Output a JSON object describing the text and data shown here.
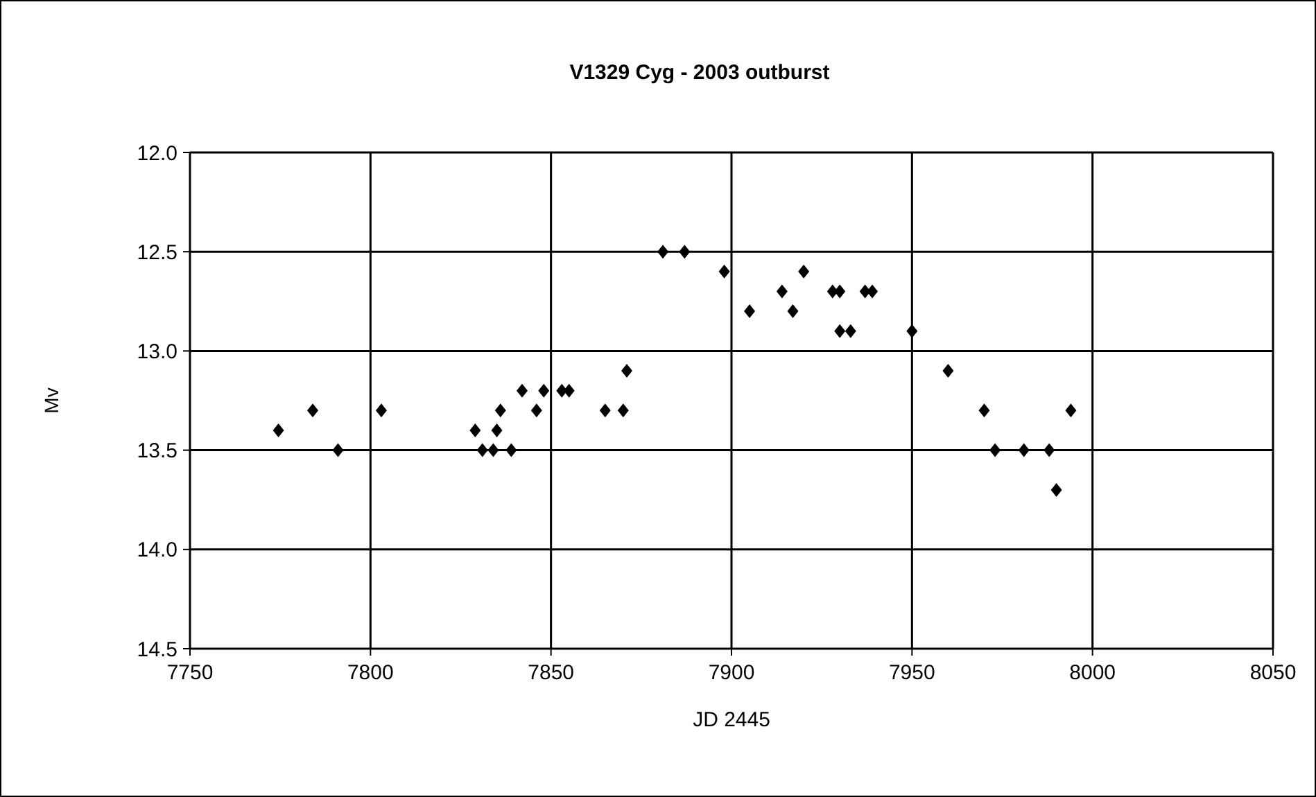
{
  "chart_data": {
    "type": "scatter",
    "title": "V1329 Cyg - 2003 outburst",
    "xlabel": "JD 2445",
    "ylabel": "Mv",
    "marker": "diamond",
    "grid": true,
    "xlim": [
      7750,
      8050
    ],
    "xticks": [
      7750,
      7800,
      7850,
      7900,
      7950,
      8000,
      8050
    ],
    "ylim": [
      14.5,
      12.0
    ],
    "yticks": [
      {
        "value": 12.0,
        "label": "12.0"
      },
      {
        "value": 12.5,
        "label": "12.5"
      },
      {
        "value": 13.0,
        "label": "13.0"
      },
      {
        "value": 13.5,
        "label": "13.5"
      },
      {
        "value": 14.0,
        "label": "14.0"
      },
      {
        "value": 14.5,
        "label": "14.5"
      }
    ],
    "series": [
      {
        "color": "#000000",
        "x": [
          7774.5,
          7784,
          7791,
          7803,
          7829,
          7831,
          7834,
          7835,
          7836,
          7839,
          7842,
          7846,
          7848,
          7853,
          7855,
          7865,
          7870,
          7871,
          7881,
          7887,
          7898,
          7905,
          7914,
          7917,
          7920,
          7928,
          7930,
          7930,
          7933,
          7937,
          7939,
          7950,
          7960,
          7970,
          7973,
          7981,
          7988,
          7990,
          7994
        ],
        "values": [
          13.4,
          13.3,
          13.5,
          13.3,
          13.4,
          13.5,
          13.5,
          13.4,
          13.3,
          13.5,
          13.2,
          13.3,
          13.2,
          13.2,
          13.2,
          13.3,
          13.3,
          13.1,
          12.5,
          12.5,
          12.6,
          12.8,
          12.7,
          12.8,
          12.6,
          12.7,
          12.7,
          12.9,
          12.9,
          12.7,
          12.7,
          12.9,
          13.1,
          13.3,
          13.5,
          13.5,
          13.5,
          13.7,
          13.3
        ]
      }
    ]
  }
}
